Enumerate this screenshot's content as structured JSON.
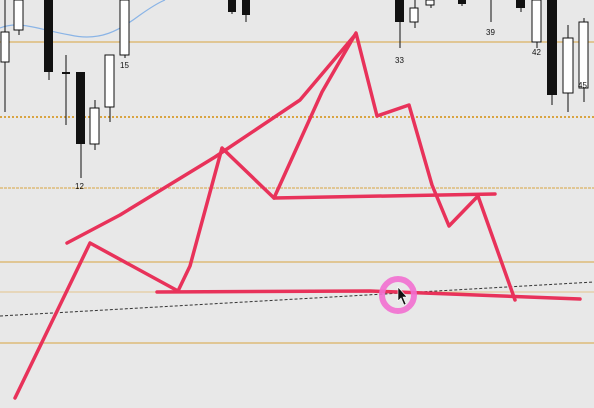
{
  "palette": {
    "background": "#e8e8e8",
    "candle_dark": "#111111",
    "candle_light": "#ffffff",
    "ma_line": "#8ab4e6",
    "level_line": "#d9a441",
    "drawing": "#e8325a",
    "cursor_highlight": "#f26fd0",
    "trendline": "#333333"
  },
  "bar_labels": [
    {
      "text": "15"
    },
    {
      "text": "12"
    },
    {
      "text": "33"
    },
    {
      "text": "39"
    },
    {
      "text": "42"
    },
    {
      "text": "45"
    }
  ],
  "tool": {
    "name": "freehand-draw",
    "icon": "arrow-cursor-icon"
  }
}
